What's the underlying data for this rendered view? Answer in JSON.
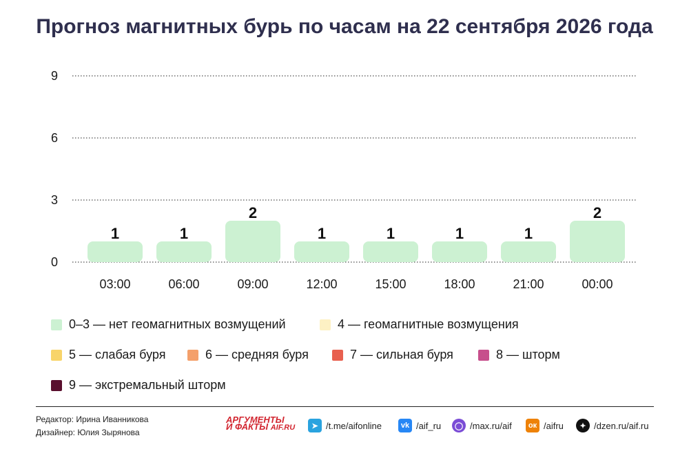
{
  "title": "Прогноз магнитных бурь по часам на 22 сентября 2026 года",
  "chart_data": {
    "type": "bar",
    "title": "Прогноз магнитных бурь по часам на 22 сентября 2026 года",
    "categories": [
      "03:00",
      "06:00",
      "09:00",
      "12:00",
      "15:00",
      "18:00",
      "21:00",
      "00:00"
    ],
    "values": [
      1,
      1,
      2,
      1,
      1,
      1,
      1,
      2
    ],
    "ylim": [
      0,
      9
    ],
    "yticks": [
      0,
      3,
      6,
      9
    ],
    "grid": "dotted horizontal",
    "bar_color": "#ccf1d2",
    "xlabel": "",
    "ylabel": ""
  },
  "legend": [
    {
      "label": "0–3 — нет геомагнитных возмущений",
      "color": "#ccf1d2"
    },
    {
      "label": "4 — геомагнитные возмущения",
      "color": "#fdf1c4"
    },
    {
      "label": "5 — слабая буря",
      "color": "#f8d46a"
    },
    {
      "label": "6 — средняя буря",
      "color": "#f4a06b"
    },
    {
      "label": "7 — сильная буря",
      "color": "#e8604f"
    },
    {
      "label": "8 — шторм",
      "color": "#c74f8c"
    },
    {
      "label": "9 — экстремальный шторм",
      "color": "#5a0f2e"
    }
  ],
  "credits": {
    "editor": "Редактор: Ирина Иванникова",
    "designer": "Дизайнер: Юлия Зырянова"
  },
  "logo": {
    "line1": "АРГУМЕНТЫ",
    "line2": "И ФАКТЫ",
    "sub": "AIF.RU"
  },
  "social": [
    {
      "text": "/t.me/aifonline",
      "icon": "telegram-icon",
      "color": "#2aa3df"
    },
    {
      "text": "/aif_ru",
      "icon": "vk-icon",
      "color": "#2787f5"
    },
    {
      "text": "/max.ru/aif",
      "icon": "max-icon",
      "color": "#7b4dd6"
    },
    {
      "text": "/aifru",
      "icon": "ok-icon",
      "color": "#ee8208"
    },
    {
      "text": "/dzen.ru/aif.ru",
      "icon": "dzen-icon",
      "color": "#111111"
    }
  ]
}
